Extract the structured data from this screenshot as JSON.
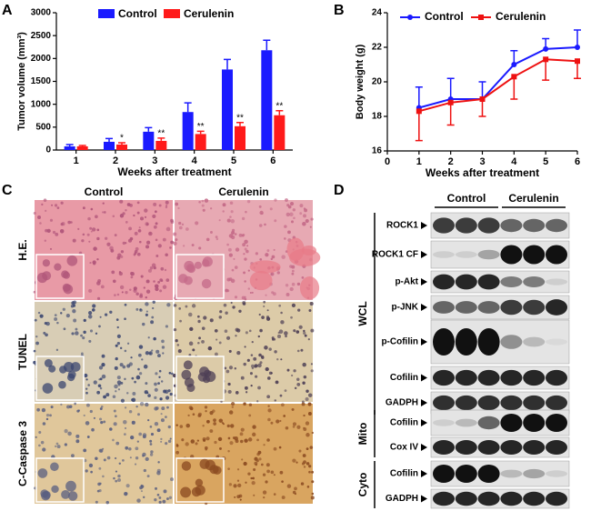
{
  "chart_data": [
    {
      "type": "bar",
      "panel": "A",
      "y_label": "Tumor volume (mm³)",
      "x_label": "Weeks after treatment",
      "categories": [
        "1",
        "2",
        "3",
        "4",
        "5",
        "6"
      ],
      "series": [
        {
          "name": "Control",
          "color": "#1a1aff",
          "values": [
            80,
            180,
            400,
            830,
            1760,
            2180
          ],
          "errors": [
            40,
            70,
            90,
            200,
            220,
            220
          ]
        },
        {
          "name": "Cerulenin",
          "color": "#ff1a1a",
          "values": [
            80,
            120,
            200,
            350,
            520,
            760
          ],
          "errors": [
            20,
            40,
            60,
            60,
            80,
            100
          ]
        }
      ],
      "annotations": [
        null,
        "*",
        "**",
        "**",
        "**",
        "**"
      ],
      "ylim": [
        0,
        3000
      ],
      "yticks": [
        0,
        500,
        1000,
        1500,
        2000,
        2500,
        3000
      ]
    },
    {
      "type": "line",
      "panel": "B",
      "y_label": "Body weight (g)",
      "x_label": "Weeks after treatment",
      "x": [
        1,
        2,
        3,
        4,
        5,
        6
      ],
      "series": [
        {
          "name": "Control",
          "color": "#1a1aff",
          "values": [
            18.5,
            19.0,
            19.0,
            21.0,
            21.9,
            22.0
          ],
          "errors": [
            1.2,
            1.2,
            1.0,
            0.8,
            0.6,
            1.0
          ],
          "error_direction": "up"
        },
        {
          "name": "Cerulenin",
          "color": "#ee1111",
          "values": [
            18.3,
            18.8,
            19.0,
            20.3,
            21.3,
            21.2
          ],
          "errors": [
            1.7,
            1.3,
            1.0,
            1.3,
            1.2,
            1.0
          ],
          "error_direction": "down"
        }
      ],
      "xlim": [
        0,
        6
      ],
      "xticks": [
        0,
        1,
        2,
        3,
        4,
        5,
        6
      ],
      "ylim": [
        16,
        24
      ],
      "yticks": [
        16,
        18,
        20,
        22,
        24
      ]
    }
  ],
  "panel_c": {
    "panel": "C",
    "columns": [
      "Control",
      "Cerulenin"
    ],
    "rows": [
      "H.E.",
      "TUNEL",
      "C-Caspase 3"
    ]
  },
  "panel_d": {
    "panel": "D",
    "columns": [
      "Control",
      "Cerulenin"
    ],
    "groups": [
      {
        "name": "WCL",
        "rows": [
          "ROCK1",
          "ROCK1 CF",
          "p-Akt",
          "p-JNK",
          "p-Cofilin",
          "Cofilin",
          "GADPH"
        ]
      },
      {
        "name": "Mito",
        "rows": [
          "Cofilin",
          "Cox IV"
        ]
      },
      {
        "name": "Cyto",
        "rows": [
          "Cofilin",
          "GADPH"
        ]
      }
    ]
  }
}
